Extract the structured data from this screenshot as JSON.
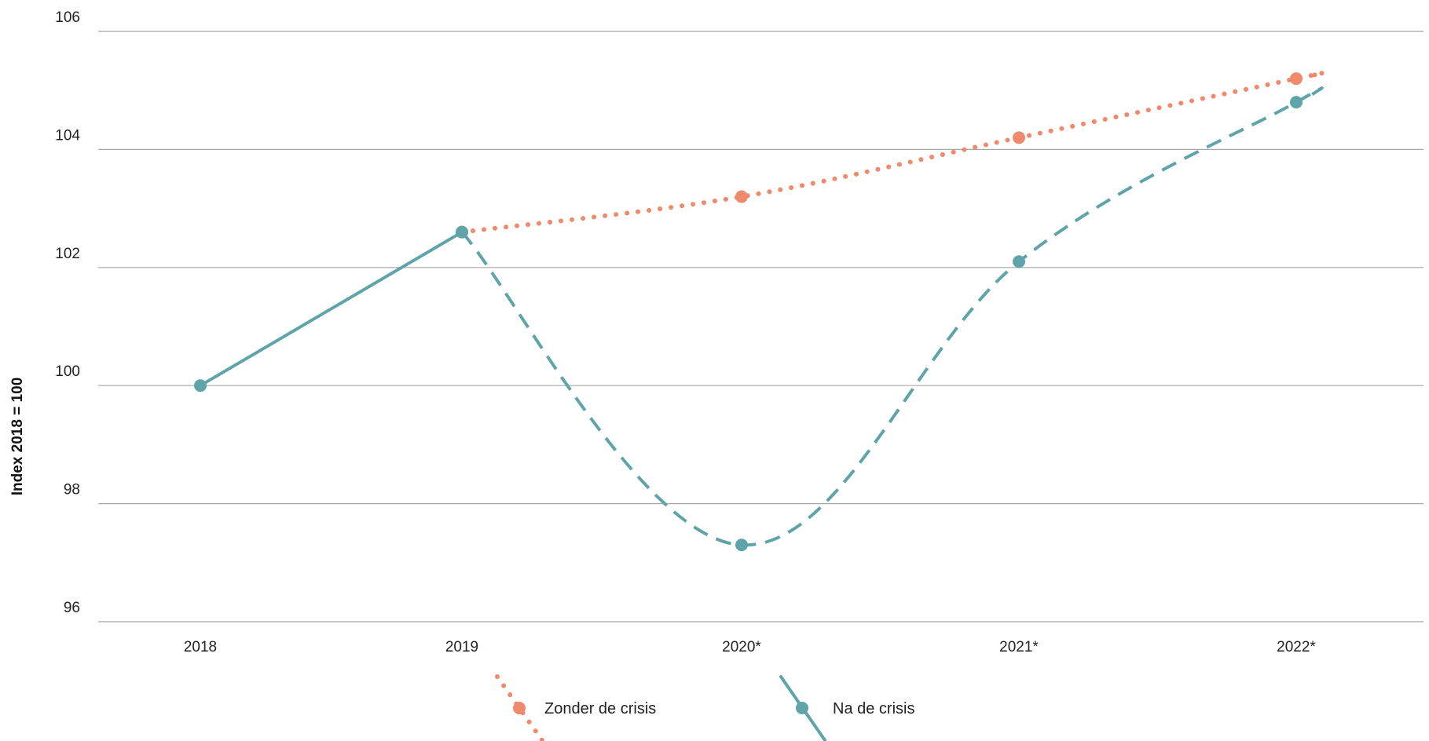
{
  "chart_data": {
    "type": "line",
    "ylabel": "Index 2018 = 100",
    "ylim": [
      96,
      106
    ],
    "yticks": [
      "96",
      "98",
      "100",
      "102",
      "104",
      "106"
    ],
    "categories": [
      "2018",
      "2019",
      "2020*",
      "2021*",
      "2022*"
    ],
    "grid": true,
    "legend_position": "bottom",
    "series": [
      {
        "name": "Zonder de crisis",
        "color": "#F08A6C",
        "style": "dotted",
        "x": [
          "2019",
          "2020*",
          "2021*",
          "2022*"
        ],
        "values": [
          102.6,
          103.2,
          104.2,
          105.2
        ]
      },
      {
        "name": "Na de crisis",
        "color": "#5FA4A8",
        "style": "solid-then-dashed",
        "x": [
          "2018",
          "2019",
          "2020*",
          "2021*",
          "2022*"
        ],
        "values": [
          100.0,
          102.6,
          97.3,
          102.1,
          104.8
        ]
      }
    ]
  }
}
